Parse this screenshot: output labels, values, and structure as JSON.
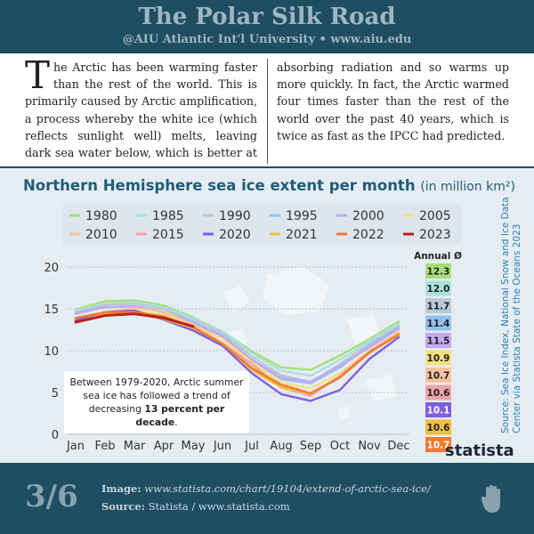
{
  "header": {
    "title": "The Polar Silk Road",
    "subtitle": "@AIU Atlantic Int'l University • www.aiu.edu"
  },
  "intro": {
    "text": "The Arctic has been warming faster than the rest of the world. This is primarily caused by Arctic amplification, a process whereby the white ice (which reflects sunlight well) melts, leaving dark sea water below, which is better at absorbing radiation and so warms up more quickly. In fact, the Arctic warmed four times faster than the rest of the world over the past 40 years, which is twice as fast as the IPCC had predicted."
  },
  "chart_data": {
    "type": "line",
    "title": "Northern Hemisphere sea ice extent per month",
    "unit_label": "(in million km²)",
    "categories": [
      "Jan",
      "Feb",
      "Mar",
      "Apr",
      "May",
      "Jun",
      "Jul",
      "Aug",
      "Sep",
      "Oct",
      "Nov",
      "Dec"
    ],
    "series": [
      {
        "name": "1980",
        "color": "#a6df7a",
        "values": [
          14.9,
          15.9,
          16.0,
          15.4,
          14.0,
          12.3,
          9.9,
          8.0,
          7.7,
          9.4,
          11.4,
          13.5
        ]
      },
      {
        "name": "1985",
        "color": "#a9e2dc",
        "values": [
          14.8,
          15.6,
          15.8,
          15.2,
          13.9,
          12.3,
          9.7,
          7.6,
          7.0,
          8.9,
          11.2,
          13.3
        ]
      },
      {
        "name": "1990",
        "color": "#b9c9d6",
        "values": [
          14.6,
          15.5,
          15.6,
          15.0,
          13.7,
          12.1,
          9.3,
          7.1,
          6.2,
          8.4,
          10.9,
          13.0
        ]
      },
      {
        "name": "1995",
        "color": "#93c1ee",
        "values": [
          14.4,
          15.2,
          15.3,
          14.7,
          13.4,
          11.8,
          8.9,
          6.6,
          6.1,
          8.0,
          10.6,
          12.8
        ]
      },
      {
        "name": "2000",
        "color": "#c3a9ef",
        "values": [
          14.5,
          15.2,
          15.3,
          14.6,
          13.3,
          11.7,
          8.9,
          6.8,
          6.3,
          8.2,
          10.4,
          12.6
        ]
      },
      {
        "name": "2005",
        "color": "#f6df7f",
        "values": [
          13.9,
          14.5,
          14.8,
          14.3,
          13.1,
          11.4,
          8.6,
          6.2,
          5.5,
          7.3,
          10.0,
          12.3
        ]
      },
      {
        "name": "2010",
        "color": "#f7c3a2",
        "values": [
          13.8,
          14.6,
          15.1,
          14.7,
          13.1,
          10.9,
          8.0,
          6.0,
          4.9,
          6.9,
          9.8,
          12.0
        ]
      },
      {
        "name": "2015",
        "color": "#f0a3aa",
        "values": [
          13.6,
          14.4,
          14.4,
          13.9,
          12.6,
          10.9,
          8.4,
          5.6,
          4.6,
          7.0,
          9.9,
          12.1
        ]
      },
      {
        "name": "2020",
        "color": "#7f5fdf",
        "values": [
          13.6,
          14.6,
          14.8,
          13.7,
          12.4,
          10.6,
          7.3,
          4.8,
          4.0,
          5.3,
          9.0,
          11.6
        ]
      },
      {
        "name": "2021",
        "color": "#efbf3f",
        "values": [
          13.4,
          14.4,
          14.6,
          13.8,
          12.7,
          10.9,
          7.7,
          5.6,
          4.9,
          6.8,
          9.7,
          12.0
        ]
      },
      {
        "name": "2022",
        "color": "#ef7a30",
        "values": [
          13.9,
          14.6,
          14.6,
          14.1,
          12.8,
          10.8,
          7.9,
          5.9,
          4.9,
          6.8,
          9.8,
          11.9
        ]
      },
      {
        "name": "2023",
        "color": "#b82020",
        "values": [
          13.4,
          14.2,
          14.4,
          13.9,
          12.9,
          null,
          null,
          null,
          null,
          null,
          null,
          null
        ]
      }
    ],
    "ylim": [
      0,
      20
    ],
    "yticks": [
      0,
      5,
      10,
      15,
      20
    ],
    "grid": true,
    "annual": {
      "title": "Annual Ø",
      "values": [
        12.3,
        12.0,
        11.7,
        11.4,
        11.5,
        10.9,
        10.7,
        10.6,
        10.1,
        10.6,
        10.7
      ],
      "value_labels": [
        "12.3",
        "12.0",
        "11.7",
        "11.4",
        "11.5",
        "10.9",
        "10.7",
        "10.6",
        "10.1",
        "10.6",
        "10.7"
      ]
    },
    "annotation": {
      "before": "Between 1979-2020, Arctic summer sea ice has followed a trend of decreasing ",
      "emphasis": "13 percent per decade",
      "after": "."
    },
    "source": "Source: Sea Ice Index, National Snow and Ice Data Center via Statista State of the Oceans 2023",
    "logo": "statista"
  },
  "footer": {
    "page": "3/6",
    "image_label": "Image:",
    "image_url": "www.statista.com/chart/19104/extend-of-arctic-sea-ice/",
    "source_label": "Source:",
    "source_text": "Statista / www.statista.com"
  }
}
